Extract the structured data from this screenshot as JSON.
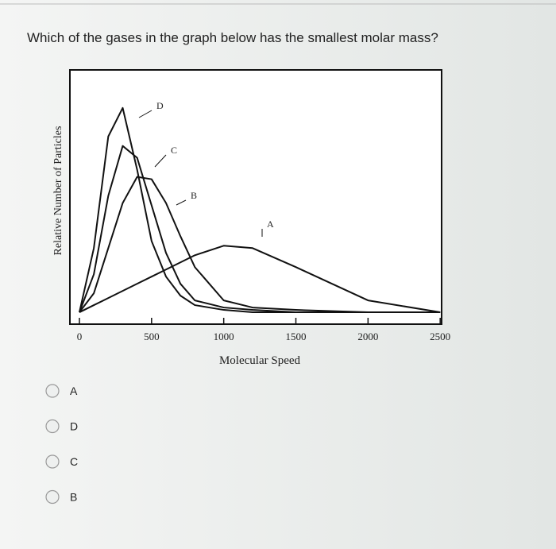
{
  "question": "Which of the gases in the graph below has the smallest molar mass?",
  "options": [
    "A",
    "D",
    "C",
    "B"
  ],
  "chart_data": {
    "type": "line",
    "x_label": "Molecular Speed",
    "y_label": "Relative Number of Particles",
    "x": [
      0,
      100,
      200,
      300,
      400,
      500,
      600,
      700,
      800,
      1000,
      1200,
      1500,
      2000,
      2500
    ],
    "series": [
      {
        "name": "D",
        "color": "#111111",
        "values": [
          0,
          0.27,
          0.74,
          0.86,
          0.6,
          0.3,
          0.15,
          0.07,
          0.03,
          0.01,
          0,
          0,
          0,
          0
        ]
      },
      {
        "name": "C",
        "color": "#111111",
        "values": [
          0,
          0.16,
          0.49,
          0.7,
          0.65,
          0.45,
          0.25,
          0.12,
          0.05,
          0.02,
          0.01,
          0,
          0,
          0
        ]
      },
      {
        "name": "B",
        "color": "#111111",
        "values": [
          0,
          0.08,
          0.27,
          0.46,
          0.57,
          0.56,
          0.46,
          0.32,
          0.19,
          0.05,
          0.02,
          0.01,
          0,
          0
        ]
      },
      {
        "name": "A",
        "color": "#111111",
        "values": [
          0,
          0.03,
          0.06,
          0.09,
          0.12,
          0.15,
          0.18,
          0.21,
          0.24,
          0.28,
          0.27,
          0.19,
          0.05,
          0
        ]
      }
    ],
    "xlim": [
      -66,
      2510
    ],
    "ylim": [
      -0.05,
      1.02
    ],
    "xticks": [
      0,
      500,
      1000,
      1500,
      2000,
      2500
    ]
  }
}
